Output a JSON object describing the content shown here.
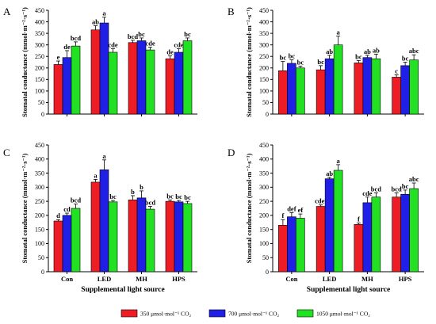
{
  "series_names": [
    "350 μmol·mol⁻¹ CO₂",
    "700 μmol·mol⁻¹ CO₂",
    "1050 μmol·mol⁻¹ CO₂"
  ],
  "colors": [
    "#ee1c24",
    "#1f1fe6",
    "#22e022"
  ],
  "ylabel": "Stomatal conductance (mmol·m⁻²·s⁻¹)",
  "xlabel": "Supplemental light source",
  "chart_data": [
    {
      "panel": "A",
      "type": "bar",
      "categories": [
        "Con",
        "LED",
        "MH",
        "HPS"
      ],
      "ylim": [
        0,
        450
      ],
      "yticks": [
        0,
        50,
        100,
        150,
        200,
        250,
        300,
        350,
        400,
        450
      ],
      "series": [
        {
          "values": [
            215,
            365,
            310,
            240
          ],
          "errors": [
            15,
            18,
            10,
            12
          ],
          "letters": [
            "e",
            "ab",
            "bcd",
            "de"
          ]
        },
        {
          "values": [
            245,
            395,
            318,
            268
          ],
          "errors": [
            30,
            25,
            12,
            15
          ],
          "letters": [
            "de",
            "a",
            "bc",
            "cde"
          ]
        },
        {
          "values": [
            295,
            268,
            278,
            318
          ],
          "errors": [
            18,
            15,
            12,
            12
          ],
          "letters": [
            "bcd",
            "cde",
            "cde",
            "bc"
          ]
        }
      ]
    },
    {
      "panel": "B",
      "type": "bar",
      "categories": [
        "Con",
        "LED",
        "MH",
        "HPS"
      ],
      "ylim": [
        0,
        450
      ],
      "yticks": [
        0,
        50,
        100,
        150,
        200,
        250,
        300,
        350,
        400,
        450
      ],
      "series": [
        {
          "values": [
            188,
            192,
            222,
            160
          ],
          "errors": [
            40,
            18,
            10,
            10
          ],
          "letters": [
            "bc",
            "bc",
            "bc",
            "c"
          ]
        },
        {
          "values": [
            220,
            240,
            245,
            210
          ],
          "errors": [
            15,
            15,
            10,
            15
          ],
          "letters": [
            "bc",
            "ab",
            "ab",
            "bc"
          ]
        },
        {
          "values": [
            200,
            300,
            240,
            235
          ],
          "errors": [
            8,
            38,
            20,
            22
          ],
          "letters": [
            "bc",
            "a",
            "ab",
            "abc"
          ]
        }
      ]
    },
    {
      "panel": "C",
      "type": "bar",
      "categories": [
        "Con",
        "LED",
        "MH",
        "HPS"
      ],
      "ylim": [
        0,
        450
      ],
      "yticks": [
        0,
        50,
        100,
        150,
        200,
        250,
        300,
        350,
        400,
        450
      ],
      "series": [
        {
          "values": [
            180,
            318,
            255,
            250
          ],
          "errors": [
            5,
            10,
            15,
            5
          ],
          "letters": [
            "d",
            "a",
            "b",
            "bc"
          ]
        },
        {
          "values": [
            200,
            362,
            262,
            248
          ],
          "errors": [
            8,
            35,
            25,
            5
          ],
          "letters": [
            "cd",
            "a",
            "b",
            "bc"
          ]
        },
        {
          "values": [
            225,
            248,
            222,
            242
          ],
          "errors": [
            15,
            5,
            10,
            8
          ],
          "letters": [
            "bcd",
            "bc",
            "bcd",
            "bc"
          ]
        }
      ]
    },
    {
      "panel": "D",
      "type": "bar",
      "categories": [
        "Con",
        "LED",
        "MH",
        "HPS"
      ],
      "ylim": [
        0,
        450
      ],
      "yticks": [
        0,
        50,
        100,
        150,
        200,
        250,
        300,
        350,
        400,
        450
      ],
      "series": [
        {
          "values": [
            165,
            232,
            168,
            265
          ],
          "errors": [
            20,
            5,
            5,
            15
          ],
          "letters": [
            "f",
            "cdef",
            "f",
            "bcd"
          ]
        },
        {
          "values": [
            195,
            330,
            245,
            275
          ],
          "errors": [
            15,
            5,
            20,
            15
          ],
          "letters": [
            "def",
            "ab",
            "cde",
            "bc"
          ]
        },
        {
          "values": [
            190,
            360,
            265,
            295
          ],
          "errors": [
            15,
            20,
            15,
            20
          ],
          "letters": [
            "ef",
            "a",
            "bcd",
            "abc"
          ]
        }
      ]
    }
  ]
}
